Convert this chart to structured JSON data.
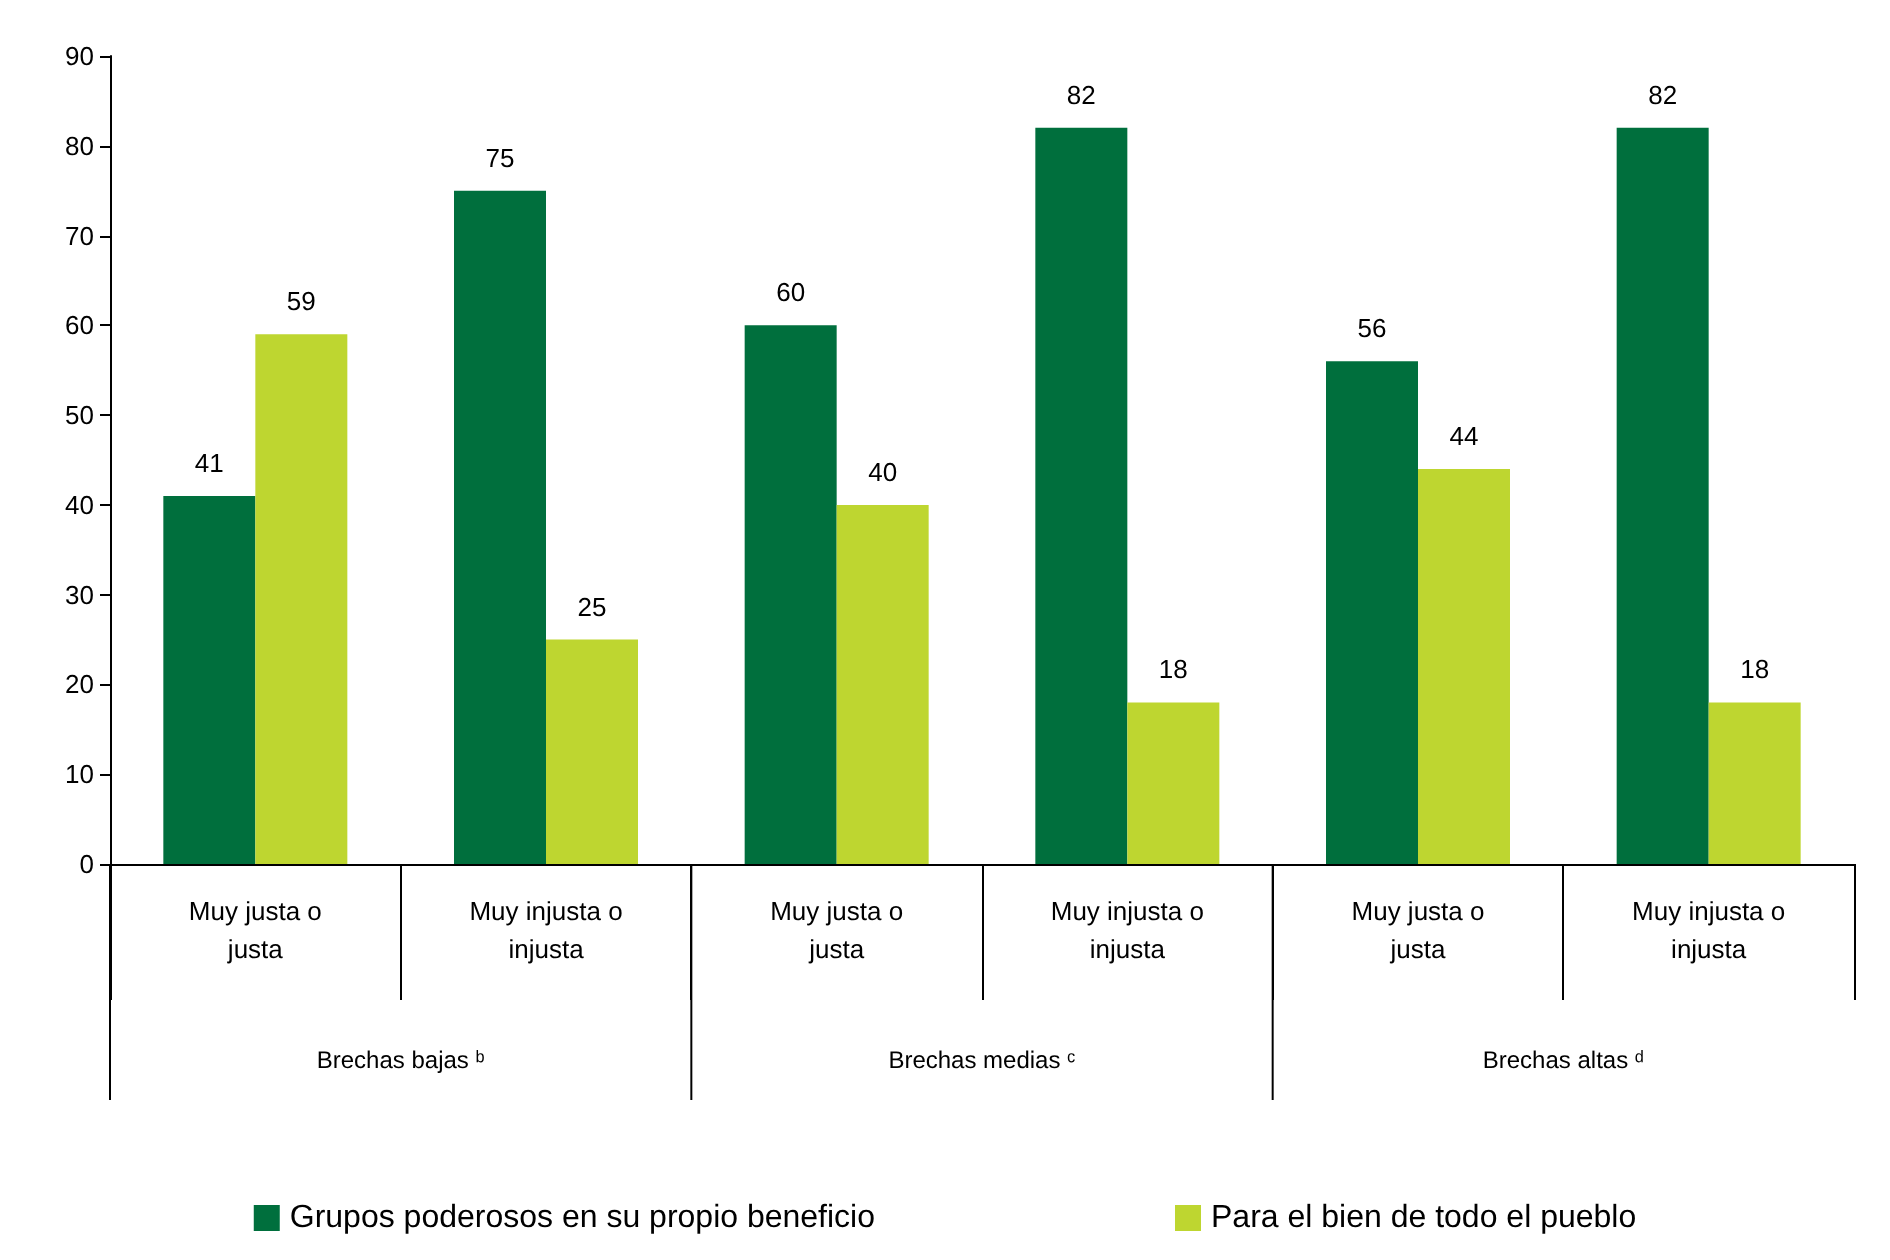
{
  "chart_data": {
    "type": "bar",
    "categories": [
      "Muy justa o\njusta",
      "Muy injusta o\ninjusta",
      "Muy justa o\njusta",
      "Muy injusta o\ninjusta",
      "Muy justa o\njusta",
      "Muy injusta o\ninjusta"
    ],
    "series": [
      {
        "name": "Grupos poderosos en su propio beneficio",
        "color": "#006f3d",
        "values": [
          41,
          75,
          60,
          82,
          56,
          82
        ]
      },
      {
        "name": "Para el bien de todo el pueblo",
        "color": "#bed630",
        "values": [
          59,
          25,
          40,
          18,
          44,
          18
        ]
      }
    ],
    "ylim": [
      0,
      90
    ],
    "yticks": [
      0,
      10,
      20,
      30,
      40,
      50,
      60,
      70,
      80,
      90
    ],
    "grid": false,
    "legend": "bottom",
    "data_labels": true,
    "annotations": [
      "Brechas bajas ᵇ",
      "Brechas medias ᶜ",
      "Brechas altas ᵈ"
    ]
  }
}
